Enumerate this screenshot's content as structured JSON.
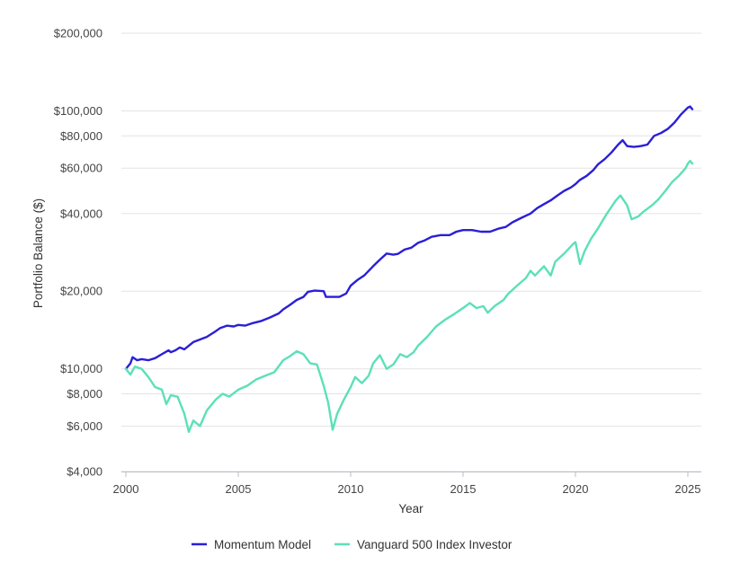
{
  "chart_data": {
    "type": "line",
    "title": "",
    "xlabel": "Year",
    "ylabel": "Portfolio Balance ($)",
    "yscale": "log",
    "xlim": [
      2000,
      2025.2
    ],
    "ylim": [
      4000,
      200000
    ],
    "x_ticks": [
      2000,
      2005,
      2010,
      2015,
      2020,
      2025
    ],
    "x_tick_labels": [
      "2000",
      "2005",
      "2010",
      "2015",
      "2020",
      "2025"
    ],
    "y_ticks": [
      4000,
      6000,
      8000,
      10000,
      20000,
      40000,
      60000,
      80000,
      100000,
      200000
    ],
    "y_tick_labels": [
      "$4,000",
      "$6,000",
      "$8,000",
      "$10,000",
      "$20,000",
      "$40,000",
      "$60,000",
      "$80,000",
      "$100,000",
      "$200,000"
    ],
    "grid": true,
    "legend_position": "bottom",
    "series": [
      {
        "name": "Momentum Model",
        "color": "#2a1fd6",
        "points": [
          [
            2000.0,
            10000
          ],
          [
            2000.2,
            10500
          ],
          [
            2000.3,
            11100
          ],
          [
            2000.5,
            10800
          ],
          [
            2000.7,
            10900
          ],
          [
            2001.0,
            10800
          ],
          [
            2001.3,
            11000
          ],
          [
            2001.6,
            11400
          ],
          [
            2001.9,
            11800
          ],
          [
            2002.0,
            11600
          ],
          [
            2002.2,
            11800
          ],
          [
            2002.4,
            12100
          ],
          [
            2002.6,
            11900
          ],
          [
            2002.8,
            12300
          ],
          [
            2003.0,
            12700
          ],
          [
            2003.3,
            13000
          ],
          [
            2003.6,
            13300
          ],
          [
            2004.0,
            14000
          ],
          [
            2004.2,
            14400
          ],
          [
            2004.5,
            14700
          ],
          [
            2004.8,
            14600
          ],
          [
            2005.0,
            14800
          ],
          [
            2005.3,
            14700
          ],
          [
            2005.6,
            15000
          ],
          [
            2006.0,
            15300
          ],
          [
            2006.4,
            15800
          ],
          [
            2006.8,
            16400
          ],
          [
            2007.0,
            17000
          ],
          [
            2007.3,
            17700
          ],
          [
            2007.6,
            18500
          ],
          [
            2007.9,
            19000
          ],
          [
            2008.1,
            19900
          ],
          [
            2008.4,
            20100
          ],
          [
            2008.8,
            20000
          ],
          [
            2008.9,
            19000
          ],
          [
            2009.2,
            19000
          ],
          [
            2009.5,
            19000
          ],
          [
            2009.8,
            19600
          ],
          [
            2010.0,
            21000
          ],
          [
            2010.3,
            22100
          ],
          [
            2010.6,
            23000
          ],
          [
            2011.0,
            25000
          ],
          [
            2011.3,
            26500
          ],
          [
            2011.6,
            28000
          ],
          [
            2011.9,
            27700
          ],
          [
            2012.1,
            27900
          ],
          [
            2012.4,
            29000
          ],
          [
            2012.7,
            29500
          ],
          [
            2013.0,
            30800
          ],
          [
            2013.3,
            31500
          ],
          [
            2013.6,
            32500
          ],
          [
            2014.0,
            33000
          ],
          [
            2014.4,
            33000
          ],
          [
            2014.7,
            34000
          ],
          [
            2015.0,
            34500
          ],
          [
            2015.4,
            34500
          ],
          [
            2015.8,
            34000
          ],
          [
            2016.2,
            34000
          ],
          [
            2016.6,
            35000
          ],
          [
            2016.9,
            35500
          ],
          [
            2017.2,
            37000
          ],
          [
            2017.6,
            38500
          ],
          [
            2018.0,
            40000
          ],
          [
            2018.3,
            42000
          ],
          [
            2018.6,
            43500
          ],
          [
            2018.9,
            45000
          ],
          [
            2019.2,
            47000
          ],
          [
            2019.5,
            49000
          ],
          [
            2019.8,
            50500
          ],
          [
            2020.0,
            52000
          ],
          [
            2020.2,
            54000
          ],
          [
            2020.5,
            56000
          ],
          [
            2020.8,
            59000
          ],
          [
            2021.0,
            62000
          ],
          [
            2021.3,
            65000
          ],
          [
            2021.6,
            69000
          ],
          [
            2021.9,
            74000
          ],
          [
            2022.1,
            77000
          ],
          [
            2022.3,
            73000
          ],
          [
            2022.6,
            72500
          ],
          [
            2022.9,
            73000
          ],
          [
            2023.2,
            74000
          ],
          [
            2023.5,
            80000
          ],
          [
            2023.8,
            82000
          ],
          [
            2024.1,
            85000
          ],
          [
            2024.4,
            90000
          ],
          [
            2024.7,
            97000
          ],
          [
            2025.0,
            103000
          ],
          [
            2025.1,
            104000
          ],
          [
            2025.2,
            101500
          ]
        ]
      },
      {
        "name": "Vanguard 500 Index Investor",
        "color": "#5ce0b8",
        "points": [
          [
            2000.0,
            10000
          ],
          [
            2000.2,
            9500
          ],
          [
            2000.4,
            10200
          ],
          [
            2000.7,
            10000
          ],
          [
            2001.0,
            9300
          ],
          [
            2001.3,
            8500
          ],
          [
            2001.6,
            8300
          ],
          [
            2001.8,
            7300
          ],
          [
            2002.0,
            7900
          ],
          [
            2002.3,
            7800
          ],
          [
            2002.6,
            6700
          ],
          [
            2002.8,
            5700
          ],
          [
            2003.0,
            6300
          ],
          [
            2003.3,
            6000
          ],
          [
            2003.6,
            6900
          ],
          [
            2004.0,
            7600
          ],
          [
            2004.3,
            8000
          ],
          [
            2004.6,
            7800
          ],
          [
            2005.0,
            8300
          ],
          [
            2005.4,
            8600
          ],
          [
            2005.8,
            9100
          ],
          [
            2006.2,
            9400
          ],
          [
            2006.6,
            9700
          ],
          [
            2007.0,
            10800
          ],
          [
            2007.3,
            11200
          ],
          [
            2007.6,
            11700
          ],
          [
            2007.9,
            11400
          ],
          [
            2008.2,
            10500
          ],
          [
            2008.5,
            10400
          ],
          [
            2008.8,
            8600
          ],
          [
            2009.0,
            7400
          ],
          [
            2009.2,
            5800
          ],
          [
            2009.4,
            6700
          ],
          [
            2009.7,
            7600
          ],
          [
            2010.0,
            8500
          ],
          [
            2010.2,
            9300
          ],
          [
            2010.5,
            8800
          ],
          [
            2010.8,
            9400
          ],
          [
            2011.0,
            10500
          ],
          [
            2011.3,
            11300
          ],
          [
            2011.6,
            10000
          ],
          [
            2011.9,
            10400
          ],
          [
            2012.2,
            11400
          ],
          [
            2012.5,
            11100
          ],
          [
            2012.8,
            11600
          ],
          [
            2013.0,
            12300
          ],
          [
            2013.4,
            13300
          ],
          [
            2013.8,
            14600
          ],
          [
            2014.2,
            15500
          ],
          [
            2014.6,
            16300
          ],
          [
            2015.0,
            17200
          ],
          [
            2015.3,
            18000
          ],
          [
            2015.6,
            17200
          ],
          [
            2015.9,
            17500
          ],
          [
            2016.1,
            16500
          ],
          [
            2016.4,
            17500
          ],
          [
            2016.8,
            18500
          ],
          [
            2017.0,
            19500
          ],
          [
            2017.4,
            21000
          ],
          [
            2017.8,
            22500
          ],
          [
            2018.0,
            24000
          ],
          [
            2018.2,
            23000
          ],
          [
            2018.6,
            25000
          ],
          [
            2018.9,
            23000
          ],
          [
            2019.1,
            26000
          ],
          [
            2019.5,
            28000
          ],
          [
            2019.9,
            30500
          ],
          [
            2020.0,
            31000
          ],
          [
            2020.2,
            25500
          ],
          [
            2020.4,
            28500
          ],
          [
            2020.7,
            32000
          ],
          [
            2021.0,
            35000
          ],
          [
            2021.4,
            40000
          ],
          [
            2021.8,
            45000
          ],
          [
            2022.0,
            47000
          ],
          [
            2022.3,
            43000
          ],
          [
            2022.5,
            38000
          ],
          [
            2022.8,
            39000
          ],
          [
            2023.0,
            40500
          ],
          [
            2023.4,
            43000
          ],
          [
            2023.7,
            45500
          ],
          [
            2024.0,
            49000
          ],
          [
            2024.3,
            53000
          ],
          [
            2024.6,
            56000
          ],
          [
            2024.9,
            60000
          ],
          [
            2025.0,
            62500
          ],
          [
            2025.1,
            64000
          ],
          [
            2025.2,
            62500
          ]
        ]
      }
    ]
  }
}
